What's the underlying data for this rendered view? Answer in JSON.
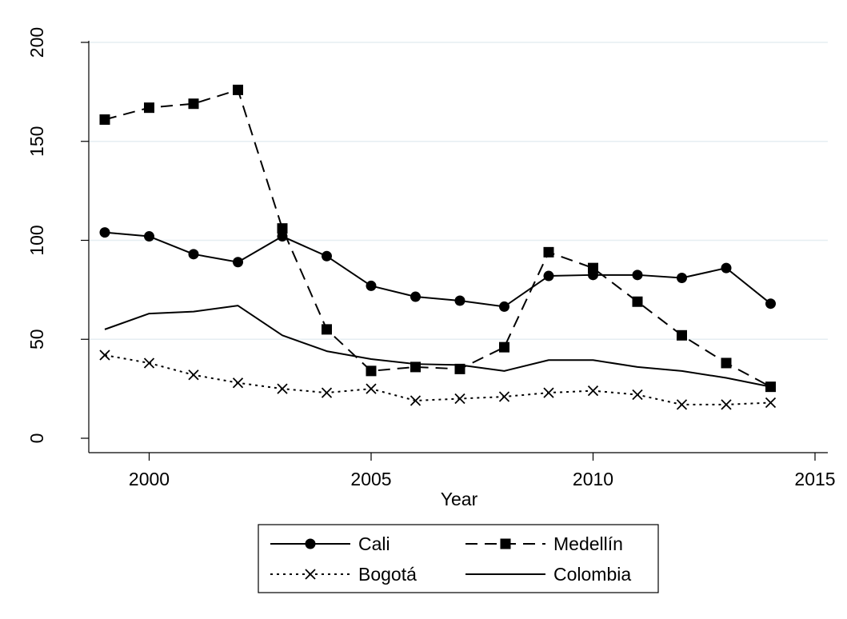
{
  "chart_data": {
    "type": "line",
    "title": "",
    "xlabel": "Year",
    "ylabel": "",
    "xlim": [
      1999,
      2015
    ],
    "ylim": [
      0,
      200
    ],
    "x_ticks": [
      2000,
      2005,
      2010,
      2015
    ],
    "y_ticks": [
      0,
      50,
      100,
      150,
      200
    ],
    "grid": "horizontal",
    "legend_position": "bottom",
    "x": [
      1999,
      2000,
      2001,
      2002,
      2003,
      2004,
      2005,
      2006,
      2007,
      2008,
      2009,
      2010,
      2011,
      2012,
      2013,
      2014
    ],
    "series": [
      {
        "name": "Cali",
        "color": "#000000",
        "line_style": "solid",
        "marker": "circle",
        "values": [
          104,
          102,
          93,
          89,
          102,
          92,
          77,
          71.5,
          69.5,
          66.5,
          82,
          82.5,
          82.5,
          81,
          86,
          68
        ]
      },
      {
        "name": "Medellín",
        "color": "#000000",
        "line_style": "dashed",
        "marker": "square",
        "values": [
          161,
          167,
          169,
          176,
          106,
          55,
          34,
          36,
          35,
          46,
          94,
          86,
          69,
          52,
          38,
          26
        ]
      },
      {
        "name": "Bogotá",
        "color": "#000000",
        "line_style": "dotted",
        "marker": "x",
        "values": [
          42,
          38,
          32,
          28,
          25,
          23,
          25,
          19,
          20,
          21,
          23,
          24,
          22,
          17,
          17,
          18
        ]
      },
      {
        "name": "Colombia",
        "color": "#000000",
        "line_style": "solid",
        "marker": "none",
        "values": [
          55,
          63,
          64,
          67,
          52,
          44,
          40,
          37.5,
          37,
          34,
          39.5,
          39.5,
          36,
          34,
          30.5,
          26
        ]
      }
    ]
  }
}
